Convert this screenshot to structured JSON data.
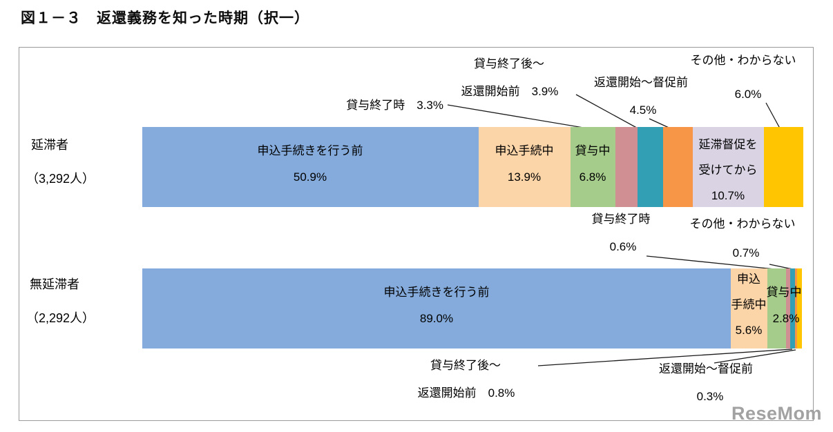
{
  "page": {
    "title": "図１－３　返還義務を知った時期（択一）",
    "watermark": "ReseMom"
  },
  "chart_data": {
    "type": "bar",
    "variant": "100-percent-horizontal-stacked",
    "title": "返還義務を知った時期（択一）",
    "figure_label": "図１－３",
    "unit": "%",
    "xlim": [
      0,
      100
    ],
    "legend": "none",
    "categories": [
      "申込手続きを行う前",
      "申込手続中",
      "貸与中",
      "貸与終了時",
      "貸与終了後～返還開始前",
      "返還開始～督促前",
      "延滞督促を受けてから",
      "その他・わからない"
    ],
    "colors": [
      "#84ABDB",
      "#FBD4A8",
      "#A5CC8B",
      "#D08F92",
      "#339FB5",
      "#F79646",
      "#D9D3E3",
      "#FEC500"
    ],
    "series": [
      {
        "label": "延滞者",
        "count_label": "（3,292人）",
        "values": [
          50.9,
          13.9,
          6.8,
          3.3,
          3.9,
          4.5,
          10.7,
          6.0
        ]
      },
      {
        "label": "無延滞者",
        "count_label": "（2,292人）",
        "values": [
          89.0,
          5.6,
          2.8,
          0.6,
          0.8,
          0.3,
          0.0,
          0.7
        ]
      }
    ],
    "annotations": {
      "top": {
        "seg0_l1": "申込手続きを行う前",
        "seg0_l2": "50.9%",
        "seg1_l1": "申込手続中",
        "seg1_l2": "13.9%",
        "seg2_l1": "貸与中",
        "seg2_l2": "6.8%",
        "seg3": "貸与終了時　3.3%",
        "seg4_l1": "貸与終了後～",
        "seg4_l2": "返還開始前　3.9%",
        "seg5_l1": "返還開始～督促前",
        "seg5_l2": "4.5%",
        "seg6_l1": "延滞督促を",
        "seg6_l2": "受けてから",
        "seg6_l3": "10.7%",
        "seg7_l1": "その他・わからない",
        "seg7_l2": "6.0%"
      },
      "bottom": {
        "seg0_l1": "申込手続きを行う前",
        "seg0_l2": "89.0%",
        "seg1_l1": "申込",
        "seg1_l2": "手続中",
        "seg1_l3": "5.6%",
        "seg2_l1": "貸与中",
        "seg2_l2": "2.8%",
        "seg3_l1": "貸与終了時",
        "seg3_l2": "0.6%",
        "seg4_l1": "貸与終了後～",
        "seg4_l2": "返還開始前　0.8%",
        "seg5_l1": "返還開始～督促前",
        "seg5_l2": "0.3%",
        "seg7_l1": "その他・わからない",
        "seg7_l2": "0.7%"
      }
    }
  }
}
